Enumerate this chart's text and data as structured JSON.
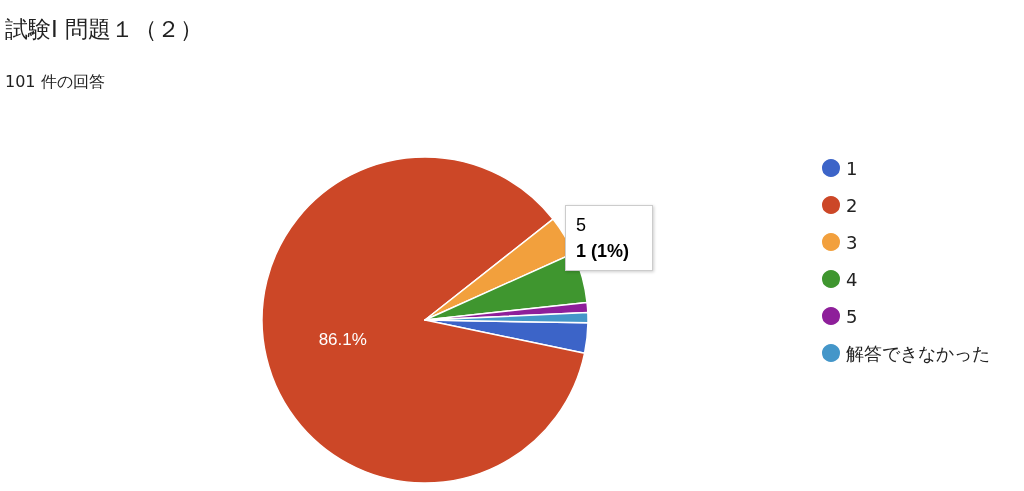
{
  "chart_data": {
    "type": "pie",
    "title": "試験Ⅰ 問題１（２）",
    "subtitle": "101 件の回答",
    "categories": [
      "1",
      "2",
      "3",
      "4",
      "5",
      "解答できなかった"
    ],
    "values": [
      3,
      86.1,
      3.9,
      5,
      1,
      1
    ],
    "colors": [
      "#3c64c8",
      "#cc4727",
      "#f2a03d",
      "#3f962f",
      "#8e1f9a",
      "#4496c9"
    ],
    "value_labels": [
      null,
      "86.1%",
      null,
      null,
      null,
      null
    ],
    "annotations": [
      "5",
      "1 (1%)"
    ],
    "legend": "right"
  }
}
